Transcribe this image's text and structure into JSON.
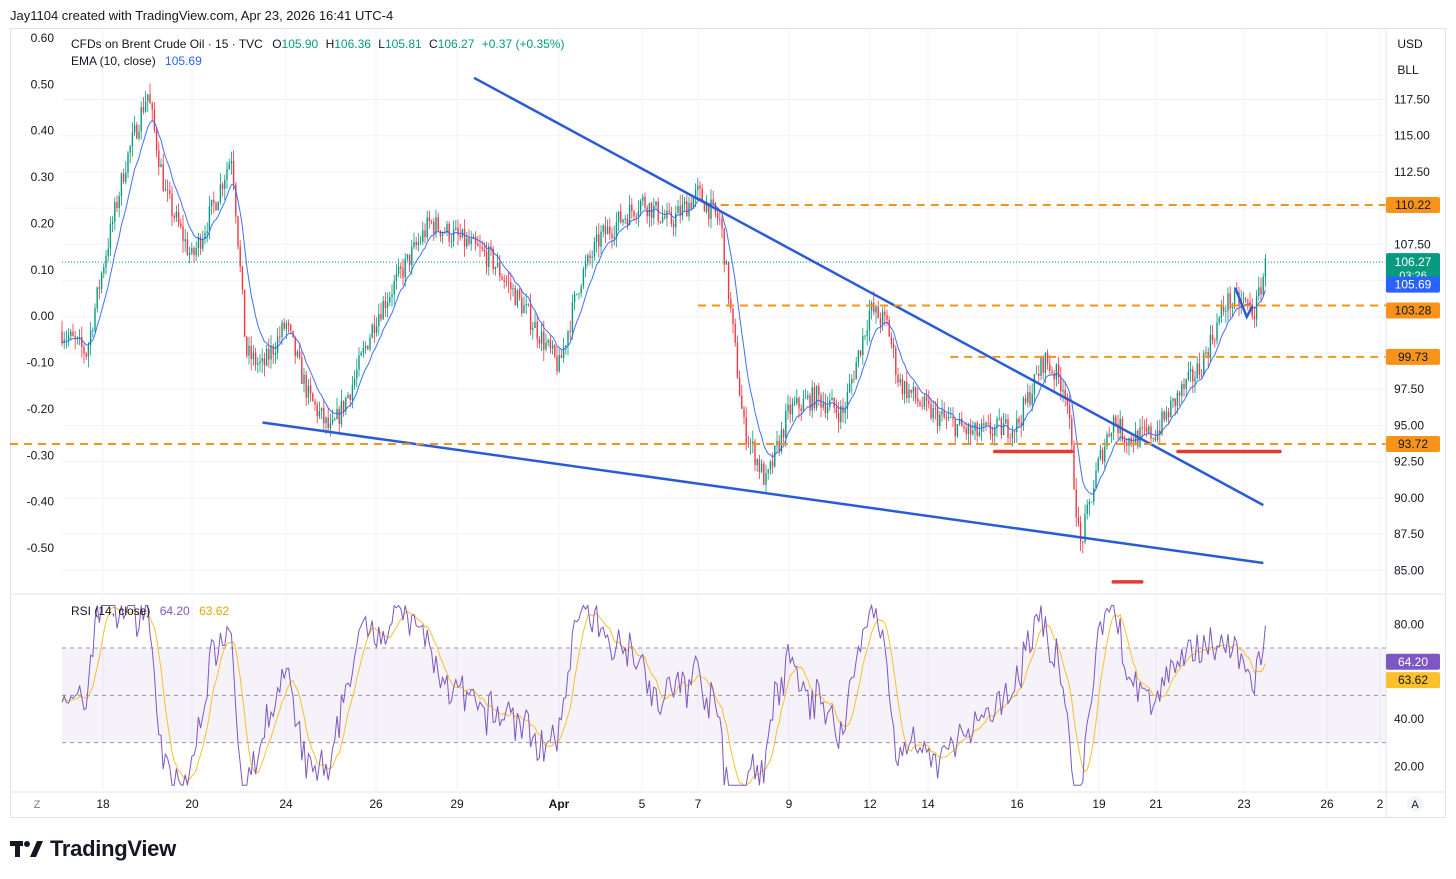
{
  "header": {
    "credit": "Jay1104 created with TradingView.com, Apr 23, 2026 16:41 UTC-4"
  },
  "legend": {
    "symbol": "CFDs on Brent Crude Oil · 15 · TVC",
    "o_label": "O",
    "o_value": "105.90",
    "h_label": "H",
    "h_value": "106.36",
    "l_label": "L",
    "l_value": "105.81",
    "c_label": "C",
    "c_value": "106.27",
    "change": "+0.37 (+0.35%)",
    "ema_label": "EMA (10, close)",
    "ema_value": "105.69"
  },
  "rsi_legend": {
    "label": "RSI (14, close)",
    "rsi_value": "64.20",
    "ma_value": "63.62"
  },
  "axis_units": {
    "currency": "USD",
    "unit": "BLL"
  },
  "badges": {
    "last_price": "106.27",
    "countdown": "03:26",
    "ema": "105.69",
    "r110": "110.22",
    "r103": "103.28",
    "r99": "99.73",
    "r93": "93.72",
    "rsi": "64.20",
    "rsi_ma": "63.62"
  },
  "corner": {
    "left": "Z",
    "right": "A"
  },
  "footer": {
    "brand": "TradingView"
  },
  "colors": {
    "up": "#089981",
    "down": "#f23645",
    "ema": "#2962ff",
    "trend": "#2a5bd7",
    "level": "#f7931a",
    "rsi": "#7e57c2",
    "rsi_ma": "#fbc02d",
    "marker": "#e53935"
  },
  "chart_data": [
    {
      "type": "candlestick",
      "title": "CFDs on Brent Crude Oil · 15 · TVC",
      "x_ticks": [
        "18",
        "20",
        "24",
        "26",
        "29",
        "Apr",
        "5",
        "7",
        "9",
        "12",
        "14",
        "16",
        "19",
        "21",
        "23",
        "26",
        "2"
      ],
      "right_axis_ticks": [
        "117.50",
        "115.00",
        "112.50",
        "107.50",
        "97.50",
        "95.00",
        "92.50",
        "90.00",
        "87.50",
        "85.00"
      ],
      "left_axis_ticks": [
        "0.60",
        "0.50",
        "0.40",
        "0.30",
        "0.20",
        "0.10",
        "0.00",
        "-0.10",
        "-0.20",
        "-0.30",
        "-0.40",
        "-0.50"
      ],
      "price_range": [
        83.5,
        122.3
      ],
      "approx_path": [
        {
          "d": "17",
          "price": 101.5
        },
        {
          "d": "17.6",
          "price": 100.0
        },
        {
          "d": "18",
          "price": 106
        },
        {
          "d": "18.5",
          "price": 113
        },
        {
          "d": "19",
          "price": 118
        },
        {
          "d": "19.4",
          "price": 111
        },
        {
          "d": "20",
          "price": 106.5
        },
        {
          "d": "21",
          "price": 110.5
        },
        {
          "d": "21.7",
          "price": 113.8
        },
        {
          "d": "22.3",
          "price": 100
        },
        {
          "d": "23",
          "price": 99
        },
        {
          "d": "24",
          "price": 102
        },
        {
          "d": "24.5",
          "price": 97
        },
        {
          "d": "25",
          "price": 94.5
        },
        {
          "d": "25.5",
          "price": 98
        },
        {
          "d": "26",
          "price": 102.5
        },
        {
          "d": "28",
          "price": 109
        },
        {
          "d": "29",
          "price": 108
        },
        {
          "d": "30",
          "price": 106.5
        },
        {
          "d": "31",
          "price": 103
        },
        {
          "d": "Apr 1",
          "price": 99
        },
        {
          "d": "Apr 2",
          "price": 105
        },
        {
          "d": "Apr 3",
          "price": 108
        },
        {
          "d": "Apr 5",
          "price": 110.5
        },
        {
          "d": "Apr 6",
          "price": 109
        },
        {
          "d": "Apr 7",
          "price": 111
        },
        {
          "d": "Apr 7.5",
          "price": 109
        },
        {
          "d": "Apr 8",
          "price": 95
        },
        {
          "d": "Apr 8.5",
          "price": 91
        },
        {
          "d": "Apr 9",
          "price": 96
        },
        {
          "d": "Apr 10",
          "price": 97
        },
        {
          "d": "Apr 11",
          "price": 95.8
        },
        {
          "d": "Apr 12",
          "price": 103
        },
        {
          "d": "Apr 12.6",
          "price": 102
        },
        {
          "d": "Apr 13",
          "price": 98
        },
        {
          "d": "Apr 14",
          "price": 96
        },
        {
          "d": "Apr 15",
          "price": 94.4
        },
        {
          "d": "Apr 16",
          "price": 95
        },
        {
          "d": "Apr 17",
          "price": 99.6
        },
        {
          "d": "Apr 17.8",
          "price": 97.5
        },
        {
          "d": "Apr 18.3",
          "price": 86.5
        },
        {
          "d": "Apr 19",
          "price": 92.5
        },
        {
          "d": "Apr 19.5",
          "price": 95.5
        },
        {
          "d": "Apr 20",
          "price": 94
        },
        {
          "d": "Apr 21",
          "price": 94.5
        },
        {
          "d": "Apr 21.5",
          "price": 97
        },
        {
          "d": "Apr 22",
          "price": 99
        },
        {
          "d": "Apr 22.6",
          "price": 103.5
        },
        {
          "d": "Apr 23",
          "price": 103.5
        },
        {
          "d": "Apr 23.4",
          "price": 102.8
        },
        {
          "d": "Apr 23.8",
          "price": 106.27
        }
      ],
      "ema_10": 105.69,
      "levels": [
        110.22,
        103.28,
        99.73,
        93.72
      ],
      "trendlines": [
        {
          "name": "upper",
          "from": {
            "d": "29.5",
            "price": 119
          },
          "to": {
            "d": "Apr 25",
            "price": 89.5
          }
        },
        {
          "name": "lower",
          "from": {
            "d": "23",
            "price": 95.2
          },
          "to": {
            "d": "Apr 25",
            "price": 85.5
          }
        }
      ]
    },
    {
      "type": "line",
      "title": "RSI (14, close)",
      "axis_ticks": [
        "80.00",
        "40.00",
        "20.00"
      ],
      "y_range": [
        10,
        92
      ],
      "bands": [
        70,
        50,
        30
      ],
      "rsi_last": 64.2,
      "ma_last": 63.62
    }
  ]
}
